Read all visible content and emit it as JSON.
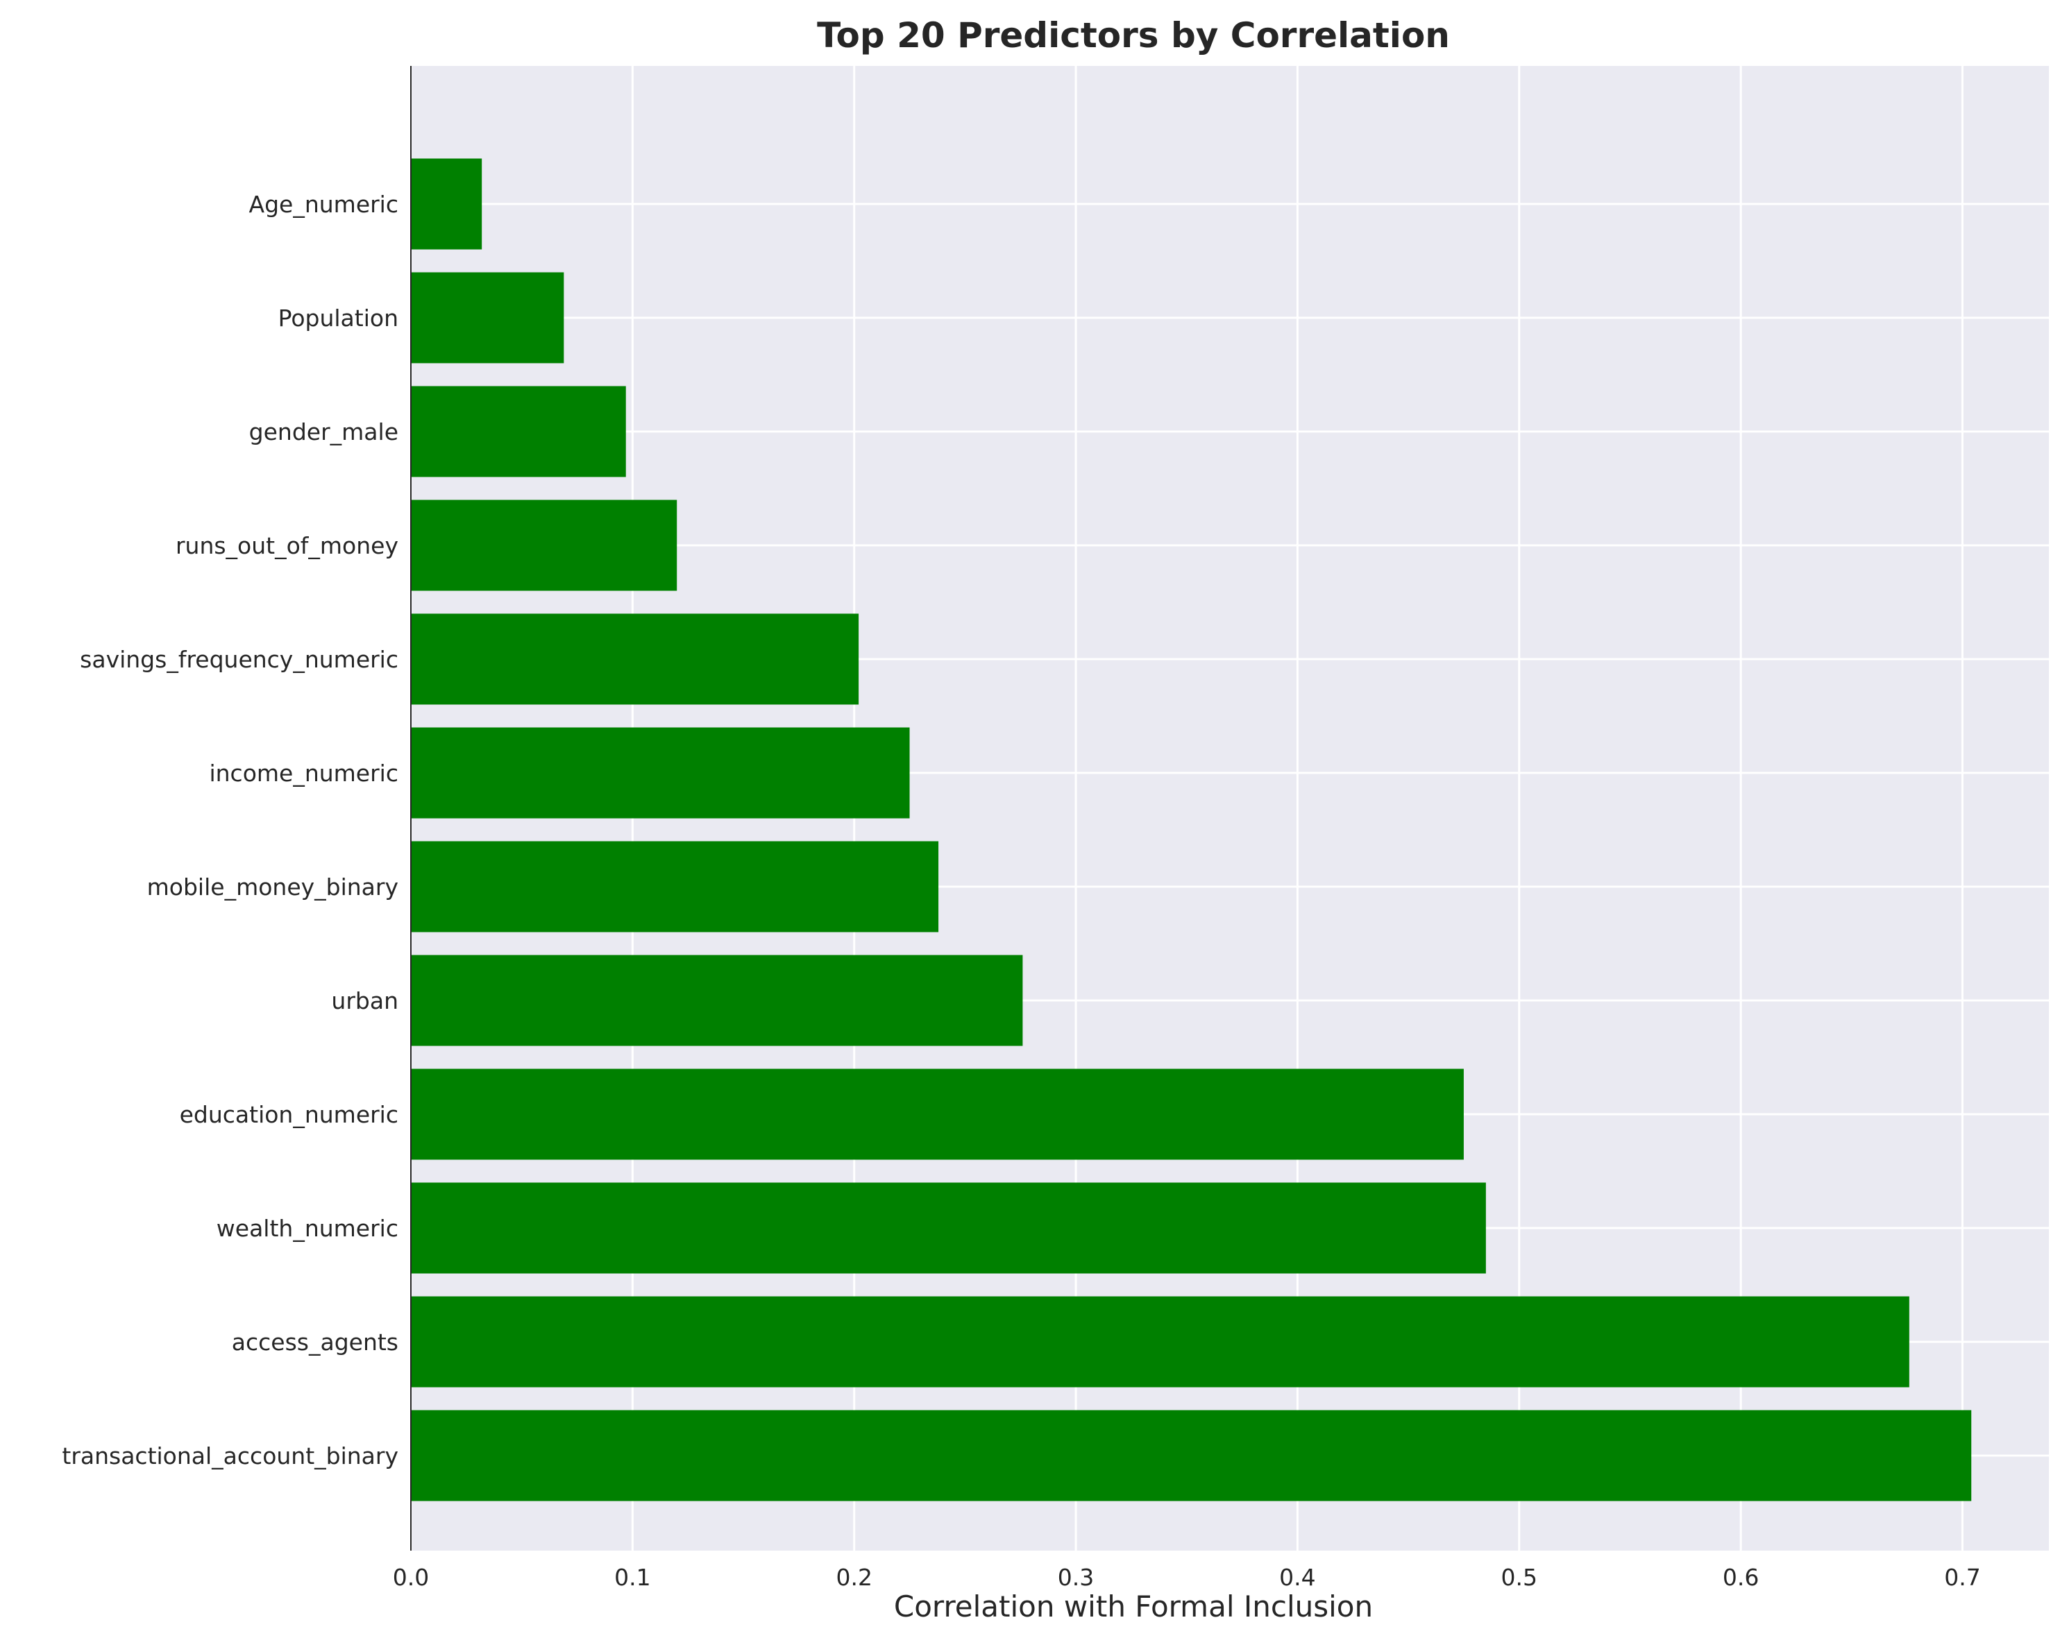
{
  "chart_data": {
    "type": "bar",
    "orientation": "horizontal",
    "title": "Top 20 Predictors by Correlation",
    "xlabel": "Correlation with Formal Inclusion",
    "ylabel": "",
    "categories": [
      "Age_numeric",
      "Population",
      "gender_male",
      "runs_out_of_money",
      "savings_frequency_numeric",
      "income_numeric",
      "mobile_money_binary",
      "urban",
      "education_numeric",
      "wealth_numeric",
      "access_agents",
      "transactional_account_binary"
    ],
    "values": [
      0.032,
      0.069,
      0.097,
      0.12,
      0.202,
      0.225,
      0.238,
      0.276,
      0.475,
      0.485,
      0.676,
      0.704
    ],
    "xlim": [
      0,
      0.739
    ],
    "xticks": [
      0.0,
      0.1,
      0.2,
      0.3,
      0.4,
      0.5,
      0.6,
      0.7
    ],
    "xtick_labels": [
      "0.0",
      "0.1",
      "0.2",
      "0.3",
      "0.4",
      "0.5",
      "0.6",
      "0.7"
    ],
    "grid": true,
    "colors": {
      "bar": "#008000",
      "plot_background": "#eaeaf2",
      "grid": "#ffffff",
      "text": "#262626"
    }
  }
}
